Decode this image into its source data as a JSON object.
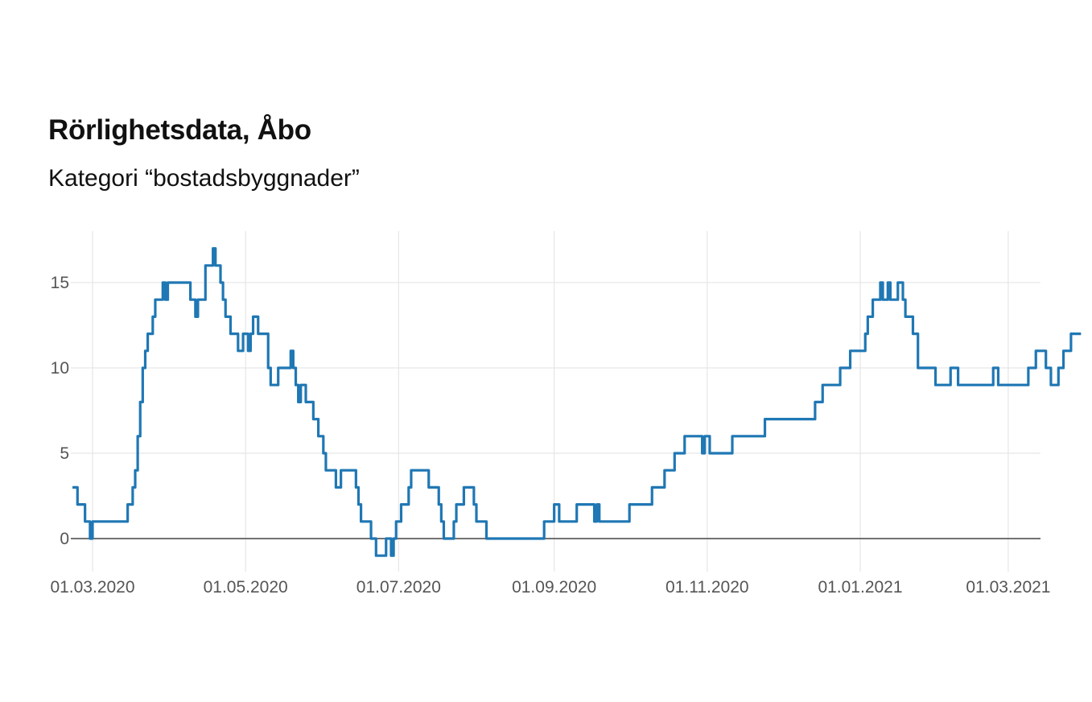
{
  "chart_data": {
    "type": "line",
    "title": "Rörlighetsdata, Åbo",
    "subtitle": "Kategori “bostadsbyggnader”",
    "xlabel": "",
    "ylabel": "",
    "ylim": [
      -2,
      18
    ],
    "x_ticks": [
      "01.03.2020",
      "01.05.2020",
      "01.07.2020",
      "01.09.2020",
      "01.11.2020",
      "01.01.2021",
      "01.03.2021"
    ],
    "y_ticks": [
      0,
      5,
      10,
      15
    ],
    "grid": true,
    "series": [
      {
        "name": "bostadsbyggnader",
        "color": "#1f77b4",
        "start_date": "2020-02-22",
        "values": [
          3,
          3,
          2,
          2,
          2,
          1,
          1,
          0,
          1,
          1,
          1,
          1,
          1,
          1,
          1,
          1,
          1,
          1,
          1,
          1,
          1,
          1,
          2,
          2,
          3,
          4,
          6,
          8,
          10,
          11,
          12,
          12,
          13,
          14,
          14,
          14,
          15,
          14,
          15,
          15,
          15,
          15,
          15,
          15,
          15,
          15,
          15,
          14,
          14,
          13,
          14,
          14,
          14,
          16,
          16,
          16,
          17,
          16,
          16,
          15,
          14,
          13,
          13,
          12,
          12,
          12,
          11,
          11,
          12,
          12,
          11,
          12,
          13,
          13,
          12,
          12,
          12,
          12,
          10,
          9,
          9,
          9,
          10,
          10,
          10,
          10,
          10,
          11,
          10,
          9,
          8,
          9,
          9,
          8,
          8,
          8,
          7,
          7,
          6,
          6,
          5,
          4,
          4,
          4,
          4,
          3,
          3,
          4,
          4,
          4,
          4,
          4,
          4,
          3,
          2,
          1,
          1,
          1,
          1,
          0,
          0,
          -1,
          -1,
          -1,
          -1,
          0,
          0,
          -1,
          0,
          1,
          1,
          2,
          2,
          2,
          3,
          4,
          4,
          4,
          4,
          4,
          4,
          4,
          3,
          3,
          3,
          3,
          2,
          1,
          0,
          0,
          0,
          0,
          1,
          2,
          2,
          2,
          3,
          3,
          3,
          3,
          2,
          1,
          1,
          1,
          1,
          0,
          0,
          0,
          0,
          0,
          0,
          0,
          0,
          0,
          0,
          0,
          0,
          0,
          0,
          0,
          0,
          0,
          0,
          0,
          0,
          0,
          0,
          0,
          1,
          1,
          1,
          1,
          2,
          2,
          1,
          1,
          1,
          1,
          1,
          1,
          1,
          2,
          2,
          2,
          2,
          2,
          2,
          2,
          1,
          2,
          1,
          1,
          1,
          1,
          1,
          1,
          1,
          1,
          1,
          1,
          1,
          1,
          2,
          2,
          2,
          2,
          2,
          2,
          2,
          2,
          2,
          3,
          3,
          3,
          3,
          3,
          4,
          4,
          4,
          4,
          5,
          5,
          5,
          5,
          6,
          6,
          6,
          6,
          6,
          6,
          6,
          5,
          6,
          6,
          5,
          5,
          5,
          5,
          5,
          5,
          5,
          5,
          5,
          6,
          6,
          6,
          6,
          6,
          6,
          6,
          6,
          6,
          6,
          6,
          6,
          6,
          7,
          7,
          7,
          7,
          7,
          7,
          7,
          7,
          7,
          7,
          7,
          7,
          7,
          7,
          7,
          7,
          7,
          7,
          7,
          7,
          8,
          8,
          8,
          9,
          9,
          9,
          9,
          9,
          9,
          9,
          10,
          10,
          10,
          10,
          11,
          11,
          11,
          11,
          11,
          11,
          12,
          13,
          13,
          14,
          14,
          14,
          15,
          14,
          14,
          15,
          14,
          14,
          14,
          15,
          15,
          14,
          13,
          13,
          13,
          12,
          12,
          10,
          10,
          10,
          10,
          10,
          10,
          10,
          9,
          9,
          9,
          9,
          9,
          9,
          10,
          10,
          10,
          9,
          9,
          9,
          9,
          9,
          9,
          9,
          9,
          9,
          9,
          9,
          9,
          9,
          9,
          10,
          10,
          9,
          9,
          9,
          9,
          9,
          9,
          9,
          9,
          9,
          9,
          9,
          9,
          10,
          10,
          10,
          11,
          11,
          11,
          11,
          10,
          10,
          9,
          9,
          9,
          10,
          10,
          11,
          11,
          11,
          12,
          12,
          12,
          12
        ]
      }
    ]
  }
}
